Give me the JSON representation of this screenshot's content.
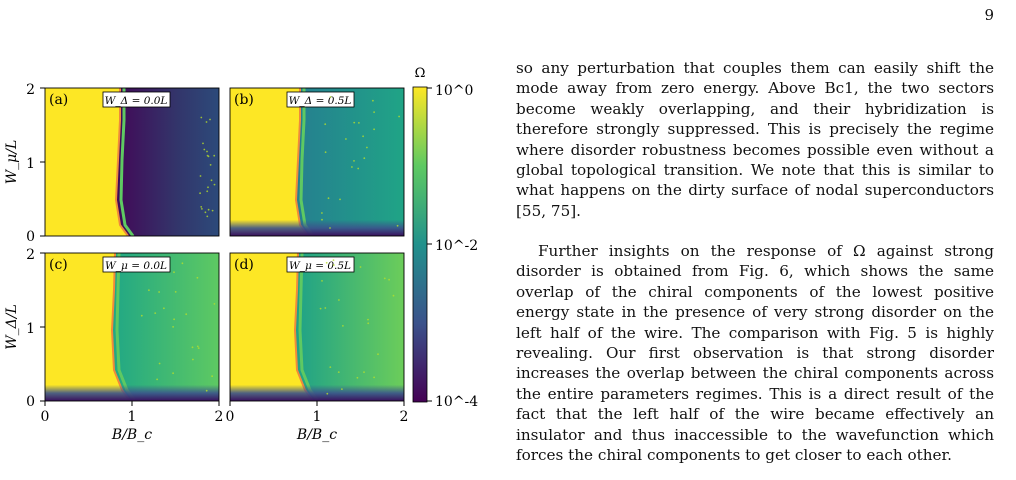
{
  "page_number": "9",
  "figure": {
    "colorbar": {
      "label": "Ω",
      "ticks": [
        "10^0",
        "10^-2",
        "10^-4"
      ]
    },
    "panels": [
      {
        "tag": "(a)",
        "param": "W_Δ = 0.0L"
      },
      {
        "tag": "(b)",
        "param": "W_Δ = 0.5L"
      },
      {
        "tag": "(c)",
        "param": "W_μ = 0.0L"
      },
      {
        "tag": "(d)",
        "param": "W_μ = 0.5L"
      }
    ],
    "ylabel_top": "W_μ/L",
    "ylabel_bottom": "W_Δ/L",
    "xlabel": "B/B_c",
    "x_ticks": [
      "0",
      "1",
      "2"
    ],
    "y_ticks": [
      "0",
      "1",
      "2"
    ]
  },
  "text": {
    "paragraph_1": "so any perturbation that couples them can easily shift the mode away from zero energy. Above Bc1, the two sectors become weakly overlapping, and their hybridization is therefore strongly suppressed. This is precisely the regime where disorder robustness becomes possible even without a global topological transition. We note that this is similar to what happens on the dirty surface of nodal superconductors [55, 75].",
    "paragraph_2": "Further insights on the response of Ω against strong disorder is obtained from Fig. 6, which shows the same overlap of the chiral components of the lowest positive energy state in the presence of very strong disorder on the left half of the wire. The comparison with Fig. 5 is highly revealing. Our first observation is that strong disorder increases the overlap between the chiral components across the entire parameters regimes. This is a direct result of the fact that the left half of the wire became effectively an insulator and thus inaccessible to the wavefunction which forces the chiral components to get closer to each other."
  },
  "chart_data": {
    "type": "heatmap",
    "panels": [
      {
        "tag": "(a)",
        "param": "W_Δ = 0.0L",
        "x_range": [
          0,
          2
        ],
        "y_range": [
          0,
          2
        ],
        "xlabel": "",
        "ylabel": "W_μ/L"
      },
      {
        "tag": "(b)",
        "param": "W_Δ = 0.5L",
        "x_range": [
          0,
          2
        ],
        "y_range": [
          0,
          2
        ],
        "xlabel": "",
        "ylabel": ""
      },
      {
        "tag": "(c)",
        "param": "W_μ = 0.0L",
        "x_range": [
          0,
          2
        ],
        "y_range": [
          0,
          2
        ],
        "xlabel": "B/B_c",
        "ylabel": "W_Δ/L"
      },
      {
        "tag": "(d)",
        "param": "W_μ = 0.5L",
        "x_range": [
          0,
          2
        ],
        "y_range": [
          0,
          2
        ],
        "xlabel": "B/B_c",
        "ylabel": ""
      }
    ],
    "colorbar": {
      "label": "Ω",
      "scale": "log",
      "range": [
        0.0001,
        1
      ],
      "ticks": [
        "10^0",
        "10^-2",
        "10^-4"
      ]
    },
    "colormap": "viridis",
    "colors": {
      "yellow": "#fde725",
      "green": "#5ec962",
      "teal": "#21918c",
      "blue": "#3b528b",
      "purple": "#440154"
    }
  }
}
